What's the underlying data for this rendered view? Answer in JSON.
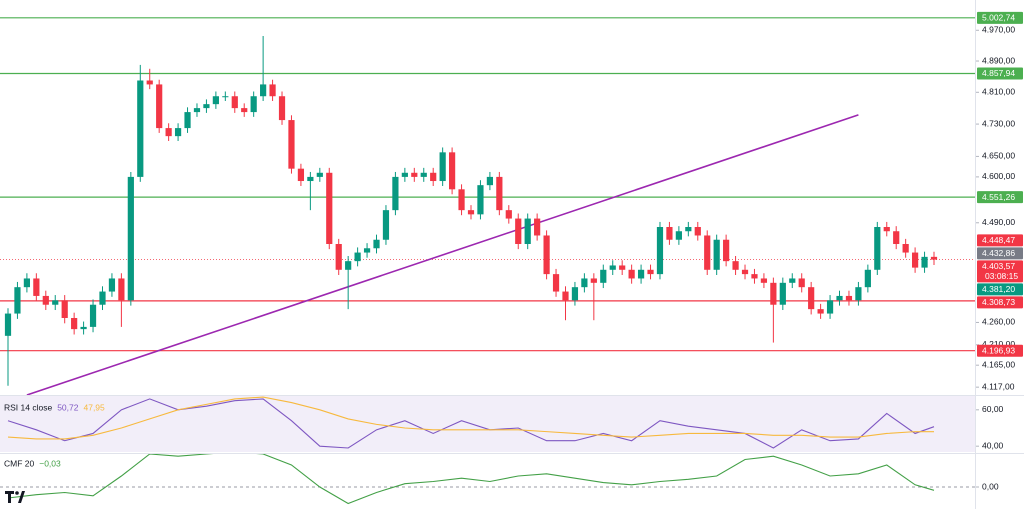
{
  "chart_data": [
    {
      "type": "candlestick",
      "up_color": "#089981",
      "down_color": "#f23645",
      "log_scale": true,
      "ylim": [
        4100,
        5050
      ],
      "yticks": [
        {
          "value": 4970,
          "label": "4.970,00"
        },
        {
          "value": 4890,
          "label": "4.890,00"
        },
        {
          "value": 4810,
          "label": "4.810,00"
        },
        {
          "value": 4730,
          "label": "4.730,00"
        },
        {
          "value": 4650,
          "label": "4.650,00"
        },
        {
          "value": 4600,
          "label": "4.600,00"
        },
        {
          "value": 4490,
          "label": "4.490,00"
        },
        {
          "value": 4260,
          "label": "4.260,00"
        },
        {
          "value": 4210,
          "label": "4.210,00"
        },
        {
          "value": 4165,
          "label": "4.165,00"
        },
        {
          "value": 4117,
          "label": "4.117,00"
        }
      ],
      "open": [
        4230,
        4280,
        4340,
        4360,
        4320,
        4300,
        4310,
        4270,
        4245,
        4250,
        4300,
        4330,
        4360,
        4310,
        4600,
        4840,
        4830,
        4720,
        4700,
        4720,
        4760,
        4770,
        4780,
        4800,
        4800,
        4770,
        4760,
        4800,
        4830,
        4800,
        4740,
        4620,
        4590,
        4600,
        4610,
        4440,
        4380,
        4400,
        4420,
        4430,
        4450,
        4520,
        4600,
        4610,
        4600,
        4610,
        4590,
        4660,
        4570,
        4520,
        4510,
        4580,
        4600,
        4520,
        4500,
        4440,
        4500,
        4460,
        4370,
        4330,
        4310,
        4340,
        4360,
        4350,
        4380,
        4390,
        4380,
        4360,
        4380,
        4370,
        4480,
        4450,
        4470,
        4480,
        4460,
        4380,
        4450,
        4400,
        4380,
        4370,
        4360,
        4350,
        4300,
        4350,
        4360,
        4340,
        4290,
        4280,
        4310,
        4320,
        4310,
        4340,
        4380,
        4480,
        4470,
        4440,
        4420,
        4385,
        4410
      ],
      "high": [
        4292,
        4352,
        4372,
        4372,
        4332,
        4322,
        4322,
        4282,
        4262,
        4312,
        4342,
        4372,
        4372,
        4612,
        4880,
        4870,
        4842,
        4732,
        4732,
        4772,
        4782,
        4792,
        4812,
        4812,
        4812,
        4782,
        4812,
        4955,
        4842,
        4812,
        4752,
        4632,
        4612,
        4622,
        4622,
        4452,
        4412,
        4432,
        4442,
        4462,
        4532,
        4612,
        4622,
        4622,
        4622,
        4622,
        4672,
        4672,
        4582,
        4532,
        4592,
        4612,
        4612,
        4532,
        4512,
        4512,
        4512,
        4472,
        4382,
        4342,
        4352,
        4372,
        4372,
        4392,
        4402,
        4402,
        4392,
        4392,
        4392,
        4492,
        4492,
        4482,
        4492,
        4492,
        4472,
        4462,
        4462,
        4412,
        4392,
        4382,
        4372,
        4362,
        4362,
        4372,
        4372,
        4352,
        4302,
        4322,
        4332,
        4332,
        4352,
        4392,
        4492,
        4492,
        4482,
        4452,
        4432,
        4422,
        4422
      ],
      "low": [
        4120,
        4268,
        4328,
        4308,
        4288,
        4288,
        4258,
        4233,
        4233,
        4238,
        4288,
        4318,
        4250,
        4298,
        4588,
        4818,
        4708,
        4688,
        4688,
        4708,
        4748,
        4758,
        4768,
        4788,
        4758,
        4748,
        4748,
        4788,
        4788,
        4728,
        4608,
        4578,
        4520,
        4588,
        4428,
        4368,
        4290,
        4388,
        4408,
        4418,
        4438,
        4508,
        4588,
        4588,
        4588,
        4578,
        4578,
        4558,
        4508,
        4498,
        4498,
        4568,
        4508,
        4488,
        4428,
        4428,
        4448,
        4358,
        4318,
        4265,
        4298,
        4328,
        4265,
        4338,
        4368,
        4368,
        4348,
        4348,
        4358,
        4358,
        4438,
        4438,
        4458,
        4448,
        4368,
        4368,
        4388,
        4368,
        4358,
        4348,
        4338,
        4215,
        4288,
        4338,
        4328,
        4278,
        4268,
        4268,
        4298,
        4298,
        4298,
        4328,
        4368,
        4458,
        4428,
        4408,
        4373,
        4373,
        4391
      ],
      "close": [
        4280,
        4340,
        4360,
        4320,
        4300,
        4310,
        4270,
        4245,
        4250,
        4300,
        4330,
        4360,
        4310,
        4600,
        4840,
        4830,
        4720,
        4700,
        4720,
        4760,
        4770,
        4780,
        4800,
        4800,
        4770,
        4760,
        4800,
        4830,
        4800,
        4740,
        4620,
        4590,
        4600,
        4610,
        4440,
        4380,
        4400,
        4420,
        4430,
        4450,
        4520,
        4600,
        4610,
        4600,
        4610,
        4590,
        4660,
        4570,
        4520,
        4510,
        4580,
        4600,
        4520,
        4500,
        4440,
        4500,
        4460,
        4370,
        4330,
        4310,
        4340,
        4360,
        4350,
        4380,
        4390,
        4380,
        4360,
        4380,
        4370,
        4480,
        4450,
        4470,
        4480,
        4460,
        4380,
        4450,
        4400,
        4380,
        4370,
        4360,
        4350,
        4300,
        4350,
        4360,
        4340,
        4290,
        4280,
        4310,
        4320,
        4310,
        4340,
        4380,
        4480,
        4470,
        4440,
        4420,
        4385,
        4410,
        4403.57
      ],
      "levels": [
        {
          "value": 5002.74,
          "label": "5.002,74",
          "color": "#4caf50"
        },
        {
          "value": 4857.94,
          "label": "4.857,94",
          "color": "#4caf50"
        },
        {
          "value": 4551.26,
          "label": "4.551,26",
          "color": "#4caf50"
        },
        {
          "value": 4308.73,
          "label": "4.308,73",
          "color": "#f23645"
        },
        {
          "value": 4196.93,
          "label": "4.196,93",
          "color": "#f23645"
        }
      ],
      "price_labels": [
        {
          "value": 4448.47,
          "label": "4.448,47",
          "color": "#f23645"
        },
        {
          "value": 4432.86,
          "label": "4.432,86",
          "color": "#787b86"
        },
        {
          "value": 4403.57,
          "label": "4.403,57",
          "color": "#f23645",
          "countdown": "03:08:15"
        },
        {
          "value": 4381.2,
          "label": "4.381,20",
          "color": "#089981"
        }
      ],
      "trendline": {
        "x": [
          2,
          90
        ],
        "values": [
          4100,
          4753
        ],
        "color": "#9c27b0"
      }
    },
    {
      "type": "line",
      "title": "RSI 14 close",
      "x": [
        0,
        3,
        6,
        9,
        12,
        15,
        18,
        21,
        24,
        27,
        30,
        33,
        36,
        39,
        42,
        45,
        48,
        51,
        54,
        57,
        60,
        63,
        66,
        69,
        72,
        75,
        78,
        81,
        84,
        87,
        90,
        93,
        96,
        98
      ],
      "ylim": [
        36.8,
        67.6
      ],
      "yticks": [
        {
          "value": 60,
          "label": "60,00"
        },
        {
          "value": 40,
          "label": "40,00"
        }
      ],
      "series": [
        {
          "color": "#7e57c2",
          "value_label": "50,72",
          "values": [
            54,
            49,
            43,
            47,
            60,
            66,
            60,
            62,
            65,
            66,
            54,
            40,
            39,
            49,
            54,
            47,
            54,
            49,
            50,
            43,
            43,
            47,
            43,
            54,
            51,
            49,
            47,
            39,
            49,
            43,
            44,
            58,
            47,
            50.72
          ]
        },
        {
          "color": "#f7b93e",
          "value_label": "47,95",
          "values": [
            45,
            44,
            44,
            46,
            50,
            55,
            60,
            63,
            66,
            67,
            64,
            60,
            55,
            52,
            50,
            49,
            49,
            49,
            49,
            48,
            47,
            46,
            45,
            46,
            47,
            47,
            47,
            46,
            46,
            45,
            45,
            47,
            48,
            47.95
          ]
        }
      ]
    },
    {
      "type": "line",
      "title": "CMF 20",
      "x": [
        0,
        3,
        6,
        9,
        12,
        15,
        18,
        21,
        24,
        27,
        30,
        33,
        36,
        39,
        42,
        45,
        48,
        51,
        54,
        57,
        60,
        63,
        66,
        69,
        72,
        75,
        78,
        81,
        84,
        87,
        90,
        93,
        96,
        98
      ],
      "ylim": [
        -0.2,
        0.3
      ],
      "yticks": [
        {
          "value": 0,
          "label": "0,00"
        }
      ],
      "grid": true,
      "series": [
        {
          "color": "#43a047",
          "value_label": "−0,03",
          "values": [
            -0.1,
            -0.07,
            -0.05,
            -0.08,
            0.1,
            0.3,
            0.28,
            0.3,
            0.32,
            0.3,
            0.2,
            0,
            -0.15,
            -0.05,
            0.03,
            0.05,
            0.08,
            0.05,
            0.1,
            0.12,
            0.08,
            0.04,
            0.02,
            0.05,
            0.07,
            0.1,
            0.25,
            0.28,
            0.2,
            0.1,
            0.12,
            0.2,
            0.02,
            -0.03
          ]
        }
      ]
    }
  ]
}
